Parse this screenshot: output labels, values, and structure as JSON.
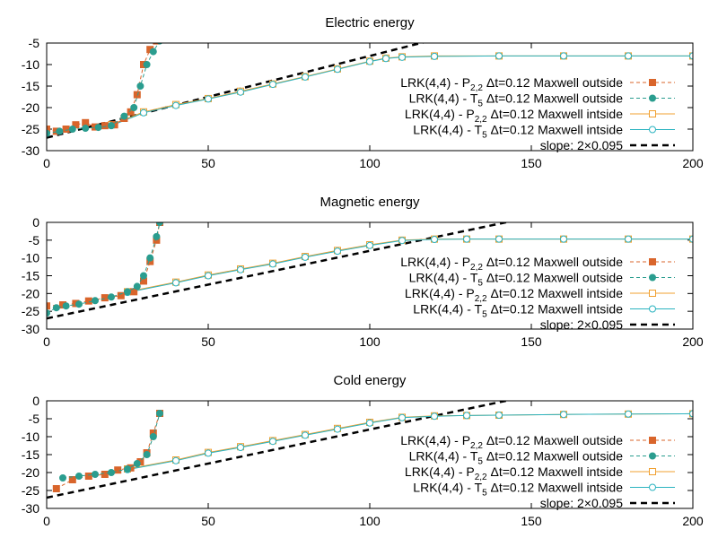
{
  "colors": {
    "orange": "#d9652b",
    "teal": "#2a9d8f",
    "orange_light": "#f0a030",
    "teal_light": "#2bb3c0",
    "slope": "#000000"
  },
  "legend_entries": [
    {
      "pre": "LRK(4,4) - P",
      "sub": "2,2",
      "post": " Δt=0.12 Maxwell outside",
      "style": "dashed-filled-square",
      "color_key": "orange"
    },
    {
      "pre": "LRK(4,4) - T",
      "sub": "5",
      "post": " Δt=0.12 Maxwell outside",
      "style": "dashed-filled-circle",
      "color_key": "teal"
    },
    {
      "pre": "LRK(4,4) - P",
      "sub": "2,2",
      "post": " Δt=0.12 Maxwell intside",
      "style": "solid-open-square",
      "color_key": "orange_light"
    },
    {
      "pre": "LRK(4,4) - T",
      "sub": "5",
      "post": " Δt=0.12 Maxwell intside",
      "style": "solid-open-circle",
      "color_key": "teal_light"
    },
    {
      "pre": "slope: 2×0.095",
      "sub": "",
      "post": "",
      "style": "thick-dashed",
      "color_key": "slope"
    }
  ],
  "chart_data": [
    {
      "type": "line",
      "title": "Electric energy",
      "xlim": [
        0,
        200
      ],
      "ylim": [
        -30,
        -5
      ],
      "x_ticks": [
        "0",
        "50",
        "100",
        "150",
        "200"
      ],
      "y_ticks": [
        "-5",
        "-10",
        "-15",
        "-20",
        "-25",
        "-30"
      ],
      "slope_line": {
        "x0": 0,
        "y0": -27,
        "slope": 0.19
      },
      "series": [
        {
          "x": [
            0,
            3,
            6,
            9,
            12,
            15,
            18,
            21,
            24,
            26,
            28,
            30,
            32,
            34
          ],
          "y": [
            -25,
            -25.5,
            -25,
            -24,
            -23.5,
            -24.5,
            -24.2,
            -24,
            -22.5,
            -21,
            -17,
            -10,
            -6.5,
            -4.5
          ]
        },
        {
          "x": [
            0,
            4,
            8,
            12,
            16,
            20,
            24,
            27,
            29,
            31,
            33,
            35
          ],
          "y": [
            -26,
            -25.5,
            -25,
            -24.8,
            -24.6,
            -24.2,
            -22,
            -20,
            -15,
            -10,
            -7,
            -4.5
          ]
        },
        {
          "x": [
            20,
            30,
            40,
            50,
            60,
            70,
            80,
            90,
            100,
            105,
            110,
            120,
            140,
            160,
            180,
            200
          ],
          "y": [
            -24,
            -21,
            -19.3,
            -17.9,
            -16.2,
            -14.5,
            -12.8,
            -11,
            -9.2,
            -8.5,
            -8.2,
            -8,
            -8,
            -8,
            -8,
            -8
          ]
        },
        {
          "x": [
            20,
            30,
            40,
            50,
            60,
            70,
            80,
            90,
            100,
            105,
            110,
            120,
            140,
            160,
            180,
            200
          ],
          "y": [
            -24.2,
            -21.2,
            -19.5,
            -18,
            -16.4,
            -14.6,
            -12.9,
            -11.1,
            -9.3,
            -8.6,
            -8.3,
            -8.1,
            -8,
            -8,
            -8,
            -8
          ]
        }
      ]
    },
    {
      "type": "line",
      "title": "Magnetic energy",
      "xlim": [
        0,
        200
      ],
      "ylim": [
        -30,
        0
      ],
      "x_ticks": [
        "0",
        "50",
        "100",
        "150",
        "200"
      ],
      "y_ticks": [
        "0",
        "-5",
        "-10",
        "-15",
        "-20",
        "-25",
        "-30"
      ],
      "slope_line": {
        "x0": 0,
        "y0": -27,
        "slope": 0.19
      },
      "series": [
        {
          "x": [
            0,
            5,
            9,
            13,
            18,
            23,
            27,
            30,
            32,
            34,
            35
          ],
          "y": [
            -23.5,
            -23.2,
            -22.8,
            -22.1,
            -21.2,
            -20.6,
            -19.5,
            -16.5,
            -11,
            -5,
            0
          ]
        },
        {
          "x": [
            0,
            3,
            6,
            10,
            15,
            20,
            25,
            28,
            30,
            32,
            34,
            35
          ],
          "y": [
            -25.5,
            -24,
            -23.5,
            -23,
            -22,
            -21,
            -19.5,
            -18,
            -15,
            -10,
            -4,
            0
          ]
        },
        {
          "x": [
            25,
            40,
            50,
            60,
            70,
            80,
            90,
            100,
            110,
            120,
            130,
            140,
            160,
            180,
            200
          ],
          "y": [
            -19.5,
            -16.8,
            -14.8,
            -13.1,
            -11.5,
            -9.6,
            -7.9,
            -6.3,
            -5,
            -4.7,
            -4.7,
            -4.7,
            -4.7,
            -4.7,
            -4.7
          ]
        },
        {
          "x": [
            25,
            40,
            50,
            60,
            70,
            80,
            90,
            100,
            110,
            120,
            130,
            140,
            160,
            180,
            200
          ],
          "y": [
            -19.7,
            -17,
            -15,
            -13.3,
            -11.7,
            -9.8,
            -8.1,
            -6.5,
            -5.1,
            -4.8,
            -4.7,
            -4.7,
            -4.7,
            -4.7,
            -4.7
          ]
        }
      ]
    },
    {
      "type": "line",
      "title": "Cold energy",
      "xlim": [
        0,
        200
      ],
      "ylim": [
        -30,
        0
      ],
      "x_ticks": [
        "0",
        "50",
        "100",
        "150",
        "200"
      ],
      "y_ticks": [
        "0",
        "-5",
        "-10",
        "-15",
        "-20",
        "-25",
        "-30"
      ],
      "slope_line": {
        "x0": 0,
        "y0": -27,
        "slope": 0.19
      },
      "series": [
        {
          "x": [
            3,
            8,
            13,
            18,
            22,
            26,
            29,
            31,
            33,
            35
          ],
          "y": [
            -24.5,
            -22,
            -21,
            -20.5,
            -19.3,
            -18.7,
            -17,
            -14.5,
            -9,
            -3.5
          ]
        },
        {
          "x": [
            5,
            10,
            15,
            20,
            25,
            28,
            31,
            33,
            35
          ],
          "y": [
            -21.5,
            -21,
            -20.5,
            -20,
            -19,
            -17.5,
            -15,
            -10,
            -3.5
          ]
        },
        {
          "x": [
            25,
            40,
            50,
            60,
            70,
            80,
            90,
            100,
            110,
            120,
            130,
            140,
            160,
            180,
            200
          ],
          "y": [
            -19,
            -16.5,
            -14.4,
            -12.8,
            -11.1,
            -9.4,
            -7.7,
            -6,
            -4.6,
            -4.2,
            -4.1,
            -4,
            -3.8,
            -3.7,
            -3.6
          ]
        },
        {
          "x": [
            25,
            40,
            50,
            60,
            70,
            80,
            90,
            100,
            110,
            120,
            130,
            140,
            160,
            180,
            200
          ],
          "y": [
            -19.2,
            -16.7,
            -14.6,
            -13,
            -11.3,
            -9.6,
            -7.9,
            -6.2,
            -4.7,
            -4.3,
            -4.1,
            -4,
            -3.8,
            -3.7,
            -3.6
          ]
        }
      ]
    }
  ]
}
